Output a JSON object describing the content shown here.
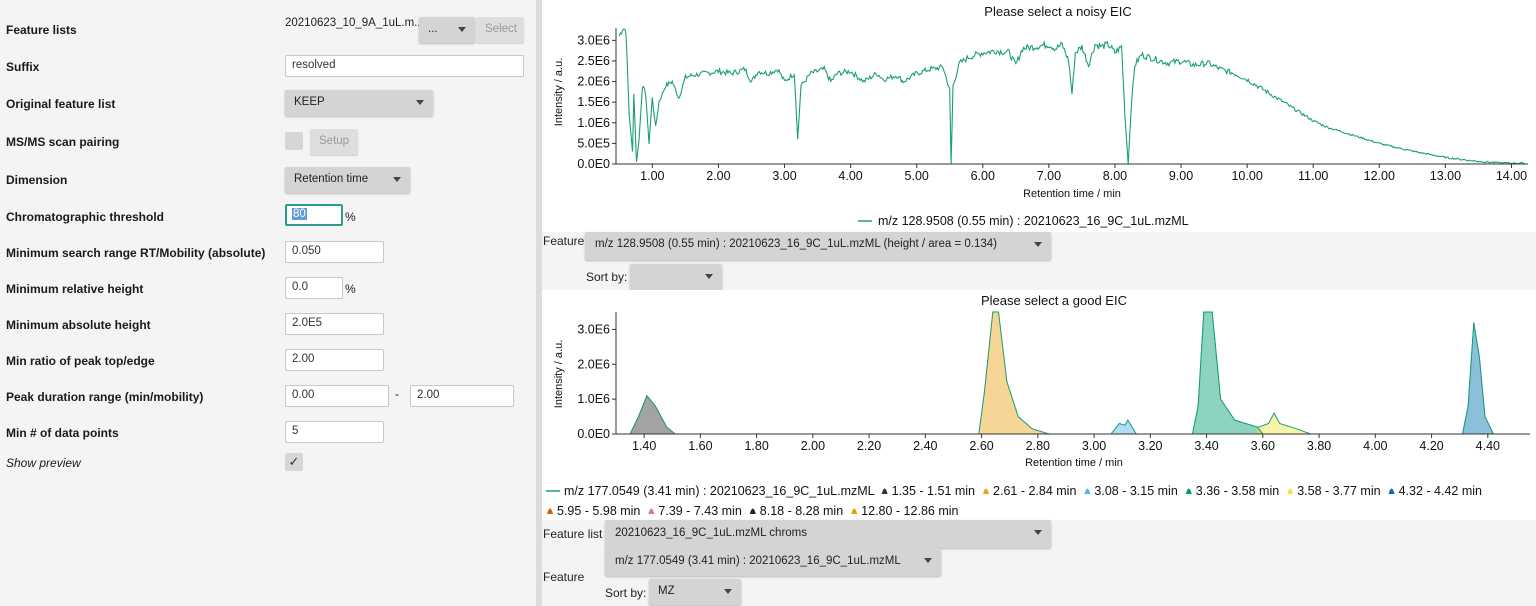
{
  "form": {
    "feature_lists": {
      "label": "Feature lists",
      "value": "20210623_10_9A_1uL.m...",
      "dots": "...",
      "select": "Select"
    },
    "suffix": {
      "label": "Suffix",
      "value": "resolved"
    },
    "original": {
      "label": "Original feature list",
      "value": "KEEP"
    },
    "msms": {
      "label": "MS/MS scan pairing",
      "setup": "Setup"
    },
    "dimension": {
      "label": "Dimension",
      "value": "Retention time"
    },
    "chrom_threshold": {
      "label": "Chromatographic threshold",
      "value": "80",
      "unit": "%"
    },
    "min_search": {
      "label": "Minimum search range RT/Mobility (absolute)",
      "value": "0.050"
    },
    "min_rel_height": {
      "label": "Minimum relative height",
      "value": "0.0",
      "unit": "%"
    },
    "min_abs_height": {
      "label": "Minimum absolute height",
      "value": "2.0E5"
    },
    "min_ratio": {
      "label": "Min ratio of peak top/edge",
      "value": "2.00"
    },
    "peak_duration": {
      "label": "Peak duration range (min/mobility)",
      "min": "0.00",
      "sep": "-",
      "max": "2.00"
    },
    "min_points": {
      "label": "Min # of data points",
      "value": "5"
    },
    "show_preview": {
      "label": "Show preview",
      "check": "✓"
    }
  },
  "top": {
    "title": "Please select a noisy EIC",
    "ylabel": "Intensity / a.u.",
    "xlabel": "Retention time / min",
    "legend": "m/z 128.9508 (0.55 min) : 20210623_16_9C_1uL.mzML",
    "feature_label": "Feature",
    "feature_value": "m/z 128.9508 (0.55 min) : 20210623_16_9C_1uL.mzML (height / area = 0.134)",
    "sortby_label": "Sort by:",
    "sortby_value": ""
  },
  "bottom": {
    "title": "Please select a good EIC",
    "ylabel": "Intensity / a.u.",
    "xlabel": "Retention time / min",
    "legend_main": "m/z 177.0549 (3.41 min) : 20210623_16_9C_1uL.mzML",
    "legend_items": [
      {
        "label": "1.35 - 1.51 min",
        "color": "#333333"
      },
      {
        "label": "2.61 - 2.84 min",
        "color": "#e8a317"
      },
      {
        "label": "3.08 - 3.15 min",
        "color": "#56b4e9"
      },
      {
        "label": "3.36 - 3.58 min",
        "color": "#009e73"
      },
      {
        "label": "3.58 - 3.77 min",
        "color": "#f0e442"
      },
      {
        "label": "4.32 - 4.42 min",
        "color": "#0072b2"
      },
      {
        "label": "5.95 - 5.98 min",
        "color": "#d55e00"
      },
      {
        "label": "7.39 - 7.43 min",
        "color": "#cc79a7"
      },
      {
        "label": "8.18 - 8.28 min",
        "color": "#222222"
      },
      {
        "label": "12.80 - 12.86 min",
        "color": "#e69f00"
      }
    ],
    "feature_list_label": "Feature list",
    "feature_list_value": "20210623_16_9C_1uL.mzML chroms",
    "feature_label": "Feature",
    "feature_value": "m/z 177.0549 (3.41 min) : 20210623_16_9C_1uL.mzML",
    "sortby_label": "Sort by:",
    "sortby_value": "MZ"
  },
  "chart_data": [
    {
      "type": "line",
      "title": "Please select a noisy EIC",
      "xlabel": "Retention time / min",
      "ylabel": "Intensity / a.u.",
      "xlim": [
        0.45,
        14.25
      ],
      "ylim": [
        0,
        3300000
      ],
      "x_ticks": [
        "1.00",
        "2.00",
        "3.00",
        "4.00",
        "5.00",
        "6.00",
        "7.00",
        "8.00",
        "9.00",
        "10.00",
        "11.00",
        "12.00",
        "13.00",
        "14.00"
      ],
      "y_ticks": [
        "0.0E0",
        "5.0E5",
        "1.0E6",
        "1.5E6",
        "2.0E6",
        "2.5E6",
        "3.0E6"
      ],
      "series": [
        {
          "name": "m/z 128.9508 (0.55 min) : 20210623_16_9C_1uL.mzML",
          "color": "#1a9e77",
          "points": [
            [
              0.5,
              3100000.0
            ],
            [
              0.55,
              3300000.0
            ],
            [
              0.6,
              3250000.0
            ],
            [
              0.65,
              1200000.0
            ],
            [
              0.7,
              300000.0
            ],
            [
              0.72,
              1700000.0
            ],
            [
              0.76,
              50000.0
            ],
            [
              0.8,
              600000.0
            ],
            [
              0.85,
              1900000.0
            ],
            [
              0.9,
              1700000.0
            ],
            [
              0.95,
              500000.0
            ],
            [
              1.0,
              1600000.0
            ],
            [
              1.05,
              900000.0
            ],
            [
              1.1,
              1500000.0
            ],
            [
              1.2,
              1900000.0
            ],
            [
              1.3,
              2000000.0
            ],
            [
              1.4,
              1600000.0
            ],
            [
              1.5,
              2100000.0
            ],
            [
              1.6,
              2150000.0
            ],
            [
              1.8,
              2200000.0
            ],
            [
              2.0,
              2250000.0
            ],
            [
              2.2,
              2200000.0
            ],
            [
              2.4,
              2300000.0
            ],
            [
              2.5,
              2000000.0
            ],
            [
              2.6,
              2250000.0
            ],
            [
              2.75,
              2200000.0
            ],
            [
              2.9,
              2300000.0
            ],
            [
              3.0,
              2000000.0
            ],
            [
              3.15,
              2200000.0
            ],
            [
              3.2,
              600000.0
            ],
            [
              3.25,
              1900000.0
            ],
            [
              3.4,
              2200000.0
            ],
            [
              3.6,
              2300000.0
            ],
            [
              3.7,
              2000000.0
            ],
            [
              3.8,
              2200000.0
            ],
            [
              4.0,
              2250000.0
            ],
            [
              4.2,
              2000000.0
            ],
            [
              4.4,
              2200000.0
            ],
            [
              4.5,
              2050000.0
            ],
            [
              4.7,
              2150000.0
            ],
            [
              4.8,
              2000000.0
            ],
            [
              5.0,
              2200000.0
            ],
            [
              5.2,
              2300000.0
            ],
            [
              5.4,
              2350000.0
            ],
            [
              5.5,
              1800000.0
            ],
            [
              5.52,
              0.0
            ],
            [
              5.55,
              1900000.0
            ],
            [
              5.65,
              2450000.0
            ],
            [
              5.8,
              2600000.0
            ],
            [
              6.0,
              2700000.0
            ],
            [
              6.2,
              2750000.0
            ],
            [
              6.4,
              2700000.0
            ],
            [
              6.5,
              2400000.0
            ],
            [
              6.6,
              2800000.0
            ],
            [
              6.8,
              2850000.0
            ],
            [
              7.0,
              2900000.0
            ],
            [
              7.1,
              2800000.0
            ],
            [
              7.2,
              2900000.0
            ],
            [
              7.3,
              2500000.0
            ],
            [
              7.35,
              1700000.0
            ],
            [
              7.4,
              2700000.0
            ],
            [
              7.5,
              2850000.0
            ],
            [
              7.6,
              2400000.0
            ],
            [
              7.7,
              2900000.0
            ],
            [
              7.8,
              2850000.0
            ],
            [
              7.9,
              2900000.0
            ],
            [
              8.0,
              2700000.0
            ],
            [
              8.1,
              2850000.0
            ],
            [
              8.15,
              1200000.0
            ],
            [
              8.2,
              0.0
            ],
            [
              8.25,
              1500000.0
            ],
            [
              8.3,
              2400000.0
            ],
            [
              8.4,
              2650000.0
            ],
            [
              8.6,
              2550000.0
            ],
            [
              8.8,
              2450000.0
            ],
            [
              9.0,
              2500000.0
            ],
            [
              9.2,
              2400000.0
            ],
            [
              9.4,
              2450000.0
            ],
            [
              9.6,
              2300000.0
            ],
            [
              9.8,
              2200000.0
            ],
            [
              10.0,
              2050000.0
            ],
            [
              10.2,
              1850000.0
            ],
            [
              10.4,
              1650000.0
            ],
            [
              10.6,
              1450000.0
            ],
            [
              10.8,
              1250000.0
            ],
            [
              11.0,
              1050000.0
            ],
            [
              11.2,
              900000.0
            ],
            [
              11.4,
              800000.0
            ],
            [
              11.6,
              700000.0
            ],
            [
              11.8,
              600000.0
            ],
            [
              12.0,
              500000.0
            ],
            [
              12.2,
              420000.0
            ],
            [
              12.4,
              350000.0
            ],
            [
              12.6,
              280000.0
            ],
            [
              12.8,
              220000.0
            ],
            [
              13.0,
              160000.0
            ],
            [
              13.2,
              120000.0
            ],
            [
              13.4,
              80000.0
            ],
            [
              13.6,
              50000.0
            ],
            [
              13.8,
              30000.0
            ],
            [
              14.0,
              20000.0
            ],
            [
              14.2,
              20000.0
            ]
          ]
        }
      ]
    },
    {
      "type": "area",
      "title": "Please select a good EIC",
      "xlabel": "Retention time / min",
      "ylabel": "Intensity / a.u.",
      "xlim": [
        1.3,
        4.55
      ],
      "ylim": [
        0,
        3500000
      ],
      "x_ticks": [
        "1.40",
        "1.60",
        "1.80",
        "2.00",
        "2.20",
        "2.40",
        "2.60",
        "2.80",
        "3.00",
        "3.20",
        "3.40",
        "3.60",
        "3.80",
        "4.00",
        "4.20",
        "4.40"
      ],
      "y_ticks": [
        "0.0E0",
        "1.0E6",
        "2.0E6",
        "3.0E6"
      ],
      "series": [
        {
          "name": "1.35 - 1.51 min",
          "color": "#333333",
          "points": [
            [
              1.35,
              0
            ],
            [
              1.38,
              500000.0
            ],
            [
              1.41,
              1100000.0
            ],
            [
              1.44,
              800000.0
            ],
            [
              1.48,
              200000.0
            ],
            [
              1.51,
              0
            ]
          ]
        },
        {
          "name": "2.61 - 2.84 min",
          "color": "#e8a317",
          "points": [
            [
              2.59,
              0
            ],
            [
              2.61,
              1200000.0
            ],
            [
              2.64,
              3500000.0
            ],
            [
              2.66,
              3500000.0
            ],
            [
              2.69,
              1500000.0
            ],
            [
              2.73,
              500000.0
            ],
            [
              2.78,
              150000.0
            ],
            [
              2.84,
              0
            ]
          ]
        },
        {
          "name": "3.08 - 3.15 min",
          "color": "#56b4e9",
          "points": [
            [
              3.06,
              0
            ],
            [
              3.09,
              300000.0
            ],
            [
              3.11,
              250000.0
            ],
            [
              3.12,
              400000.0
            ],
            [
              3.15,
              0
            ]
          ]
        },
        {
          "name": "3.36 - 3.58 min",
          "color": "#009e73",
          "points": [
            [
              3.35,
              0
            ],
            [
              3.37,
              800000.0
            ],
            [
              3.39,
              3500000.0
            ],
            [
              3.42,
              3500000.0
            ],
            [
              3.45,
              1000000.0
            ],
            [
              3.5,
              400000.0
            ],
            [
              3.58,
              200000.0
            ],
            [
              3.6,
              0
            ]
          ]
        },
        {
          "name": "3.58 - 3.77 min",
          "color": "#f0e442",
          "points": [
            [
              3.58,
              180000.0
            ],
            [
              3.62,
              300000.0
            ],
            [
              3.64,
              600000.0
            ],
            [
              3.66,
              300000.0
            ],
            [
              3.72,
              150000.0
            ],
            [
              3.77,
              0
            ]
          ]
        },
        {
          "name": "4.32 - 4.42 min",
          "color": "#0072b2",
          "points": [
            [
              4.31,
              0
            ],
            [
              4.33,
              800000.0
            ],
            [
              4.35,
              3200000.0
            ],
            [
              4.37,
              2200000.0
            ],
            [
              4.39,
              500000.0
            ],
            [
              4.42,
              0
            ]
          ]
        }
      ]
    }
  ]
}
